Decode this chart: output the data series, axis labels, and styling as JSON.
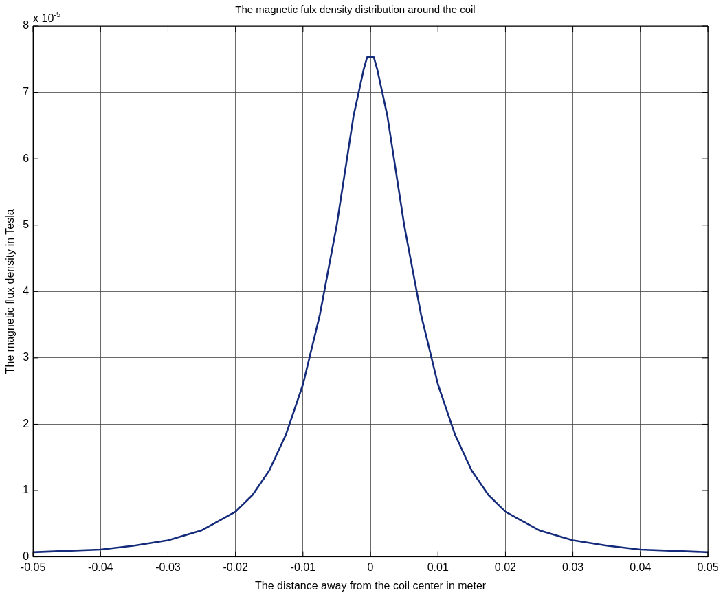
{
  "chart_data": {
    "type": "line",
    "title": "The magnetic fulx density distribution around the coil",
    "xlabel": "The distance away from the coil center in meter",
    "ylabel": "The magnetic flux density in Tesla",
    "annotations": [
      "x 10$^{-5}$"
    ],
    "x": [
      -0.05,
      -0.045,
      -0.04,
      -0.035,
      -0.03,
      -0.025,
      -0.02,
      -0.0175,
      -0.015,
      -0.0125,
      -0.01,
      -0.0075,
      -0.005,
      -0.0025,
      -0.001,
      -0.0005,
      0,
      0.0005,
      0.001,
      0.0025,
      0.005,
      0.0075,
      0.01,
      0.0125,
      0.015,
      0.0175,
      0.02,
      0.025,
      0.03,
      0.035,
      0.04,
      0.045,
      0.05
    ],
    "series": [
      {
        "color": "#142a7a",
        "values": [
          0.07,
          0.09,
          0.11,
          0.17,
          0.25,
          0.4,
          0.68,
          0.93,
          1.3,
          1.85,
          2.6,
          3.65,
          5.0,
          6.65,
          7.35,
          7.53,
          7.53,
          7.53,
          7.35,
          6.65,
          5.0,
          3.65,
          2.6,
          1.85,
          1.3,
          0.93,
          0.68,
          0.4,
          0.25,
          0.17,
          0.11,
          0.09,
          0.07
        ]
      }
    ],
    "xlim": [
      -0.05,
      0.05
    ],
    "xticks": [
      -0.05,
      -0.04,
      -0.03,
      -0.02,
      -0.01,
      0,
      0.01,
      0.02,
      0.03,
      0.04,
      0.05
    ],
    "ylim": [
      0,
      8
    ],
    "yticks": [
      0,
      1,
      2,
      3,
      4,
      5,
      6,
      7,
      8
    ],
    "grid": true,
    "marker": "none",
    "line_style": "solid"
  }
}
